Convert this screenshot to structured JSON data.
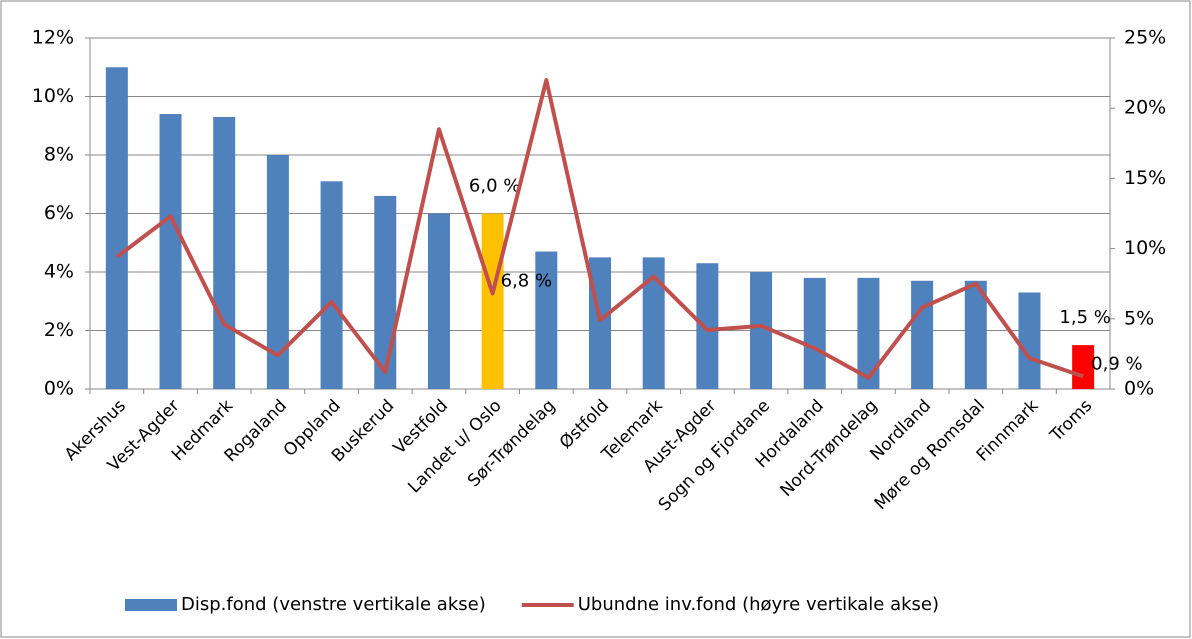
{
  "chart_data": {
    "type": "bar_line",
    "categories": [
      "Akershus",
      "Vest-Agder",
      "Hedmark",
      "Rogaland",
      "Oppland",
      "Buskerud",
      "Vestfold",
      "Landet u/ Oslo",
      "Sør-Trøndelag",
      "Østfold",
      "Telemark",
      "Aust-Agder",
      "Sogn og Fjordane",
      "Hordaland",
      "Nord-Trøndelag",
      "Nordland",
      "Møre og Romsdal",
      "Finnmark",
      "Troms"
    ],
    "series": [
      {
        "name": "Disp.fond (venstre vertikale akse)",
        "type": "bar",
        "color": "#4f81bd",
        "colors": [
          "#4f81bd",
          "#4f81bd",
          "#4f81bd",
          "#4f81bd",
          "#4f81bd",
          "#4f81bd",
          "#4f81bd",
          "#ffc000",
          "#4f81bd",
          "#4f81bd",
          "#4f81bd",
          "#4f81bd",
          "#4f81bd",
          "#4f81bd",
          "#4f81bd",
          "#4f81bd",
          "#4f81bd",
          "#4f81bd",
          "#ff0000"
        ],
        "values": [
          11.0,
          9.4,
          9.3,
          8.0,
          7.1,
          6.6,
          6.0,
          6.0,
          4.7,
          4.5,
          4.5,
          4.3,
          4.0,
          3.8,
          3.8,
          3.7,
          3.7,
          3.3,
          1.5
        ],
        "value_labels": [
          null,
          null,
          null,
          null,
          null,
          null,
          null,
          "6,0 %",
          null,
          null,
          null,
          null,
          null,
          null,
          null,
          null,
          null,
          null,
          "1,5 %"
        ]
      },
      {
        "name": "Ubundne inv.fond (høyre vertikale akse)",
        "type": "line",
        "axis": "y2",
        "color": "#c0504d",
        "values": [
          9.4,
          12.3,
          4.6,
          2.4,
          6.2,
          1.2,
          18.5,
          6.8,
          22.0,
          4.9,
          8.0,
          4.2,
          4.5,
          2.9,
          0.8,
          5.8,
          7.5,
          2.2,
          0.9
        ],
        "value_labels": [
          null,
          null,
          null,
          null,
          null,
          null,
          null,
          "6,8 %",
          null,
          null,
          null,
          null,
          null,
          null,
          null,
          null,
          null,
          null,
          "0,9 %"
        ]
      }
    ],
    "ylim": [
      0,
      12
    ],
    "yticks": [
      {
        "value": 0,
        "label": "0%"
      },
      {
        "value": 2,
        "label": "2%"
      },
      {
        "value": 4,
        "label": "4%"
      },
      {
        "value": 6,
        "label": "6%"
      },
      {
        "value": 8,
        "label": "8%"
      },
      {
        "value": 10,
        "label": "10%"
      },
      {
        "value": 12,
        "label": "12%"
      }
    ],
    "y2lim": [
      0,
      25
    ],
    "y2ticks": [
      {
        "value": 0,
        "label": "0%"
      },
      {
        "value": 5,
        "label": "5%"
      },
      {
        "value": 10,
        "label": "10%"
      },
      {
        "value": 15,
        "label": "15%"
      },
      {
        "value": 20,
        "label": "20%"
      },
      {
        "value": 25,
        "label": "25%"
      }
    ],
    "grid": true,
    "legend": "bottom"
  }
}
